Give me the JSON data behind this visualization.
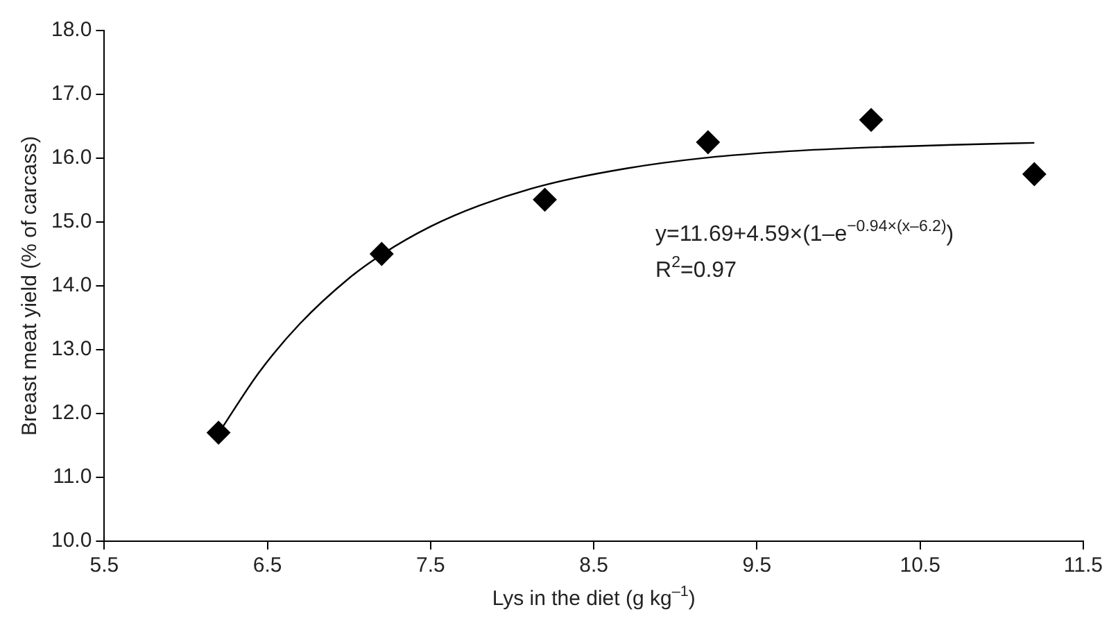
{
  "chart_data": {
    "type": "scatter",
    "xlabel": "Lys in the diet (g kg$^{–1}$)",
    "ylabel": "Breast meat yield (% of carcass)",
    "series": [
      {
        "type": "scatter",
        "color": "#000000",
        "marker": "diamond",
        "x": [
          6.2,
          7.2,
          8.2,
          9.2,
          10.2,
          11.2
        ],
        "values": [
          11.7,
          14.5,
          15.35,
          16.25,
          16.6,
          15.75
        ]
      },
      {
        "type": "line",
        "color": "#000000",
        "marker": "none",
        "line_style": "solid",
        "x": [
          6.2,
          6.45,
          6.7,
          7.0,
          7.2,
          7.5,
          7.8,
          8.2,
          8.7,
          9.2,
          9.7,
          10.2,
          10.7,
          11.2
        ],
        "values": [
          11.69,
          12.65,
          13.41,
          14.12,
          14.49,
          14.93,
          15.26,
          15.58,
          15.84,
          16.01,
          16.11,
          16.17,
          16.21,
          16.24
        ]
      }
    ],
    "xlim": [
      5.5,
      11.5
    ],
    "xticks": [
      5.5,
      6.5,
      7.5,
      8.5,
      9.5,
      10.5,
      11.5
    ],
    "ylim": [
      10,
      18
    ],
    "yticks": [
      {
        "value": 10,
        "label": "10.0"
      },
      {
        "value": 11,
        "label": "11.0"
      },
      {
        "value": 12,
        "label": "12.0"
      },
      {
        "value": 13,
        "label": "13.0"
      },
      {
        "value": 14,
        "label": "14.0"
      },
      {
        "value": 15,
        "label": "15.0"
      },
      {
        "value": 16,
        "label": "16.0"
      },
      {
        "value": 17,
        "label": "17.0"
      },
      {
        "value": 18,
        "label": "18.0"
      }
    ],
    "grid": false,
    "legend": false,
    "annotations": [
      "y=11.69+4.59×(1–e$^{−0.94×(x–6.2)}$)",
      "R$^{2}$=0.97"
    ]
  }
}
